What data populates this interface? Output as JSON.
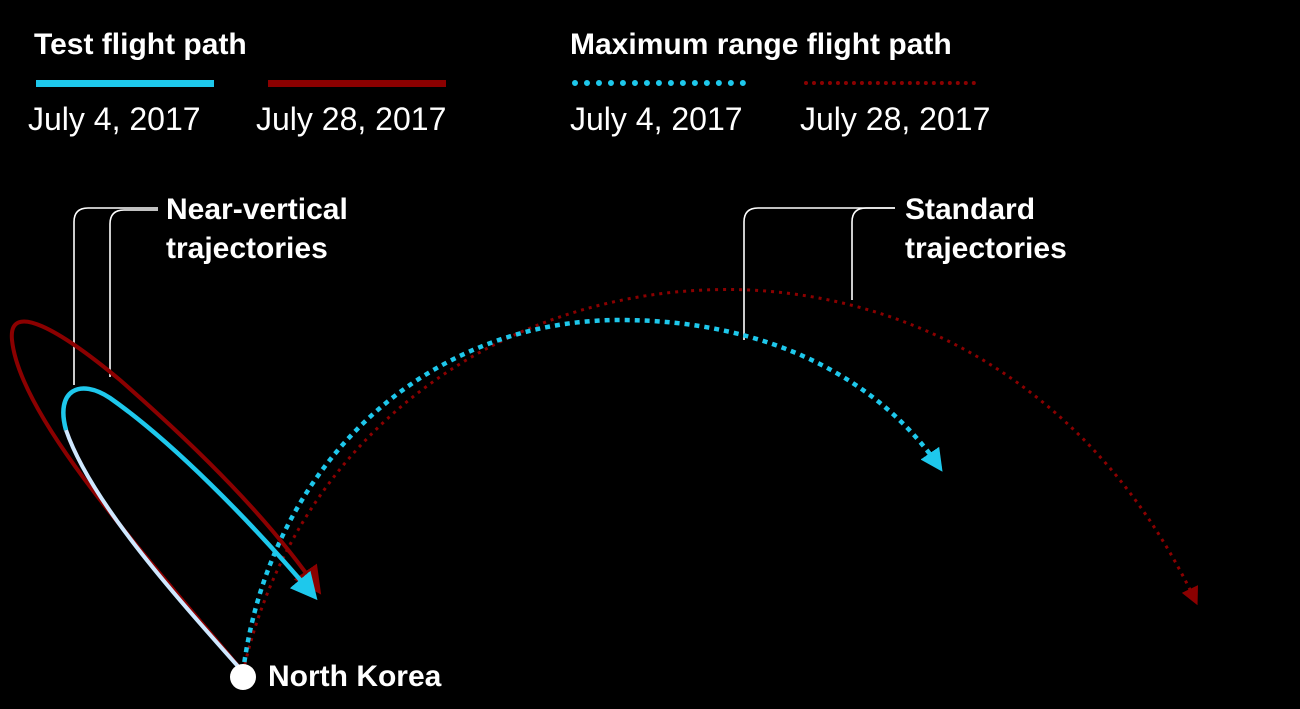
{
  "legend": {
    "test": {
      "title": "Test flight path",
      "items": [
        {
          "date": "July 4, 2017",
          "color": "#1ec8ec",
          "style": "solid"
        },
        {
          "date": "July 28, 2017",
          "color": "#8b0000",
          "style": "solid"
        }
      ]
    },
    "max_range": {
      "title": "Maximum range flight path",
      "items": [
        {
          "date": "July 4, 2017",
          "color": "#1ec8ec",
          "style": "dotted"
        },
        {
          "date": "July 28, 2017",
          "color": "#8b0000",
          "style": "dotted"
        }
      ]
    }
  },
  "annotations": {
    "near_vertical": [
      "Near-vertical",
      "trajectories"
    ],
    "standard": [
      "Standard",
      "trajectories"
    ]
  },
  "origin_label": "North Korea",
  "colors": {
    "background": "#000000",
    "july4": "#1ec8ec",
    "july28": "#8b0000",
    "leader": "#ffffff",
    "ascent": "#cfe8ff"
  }
}
